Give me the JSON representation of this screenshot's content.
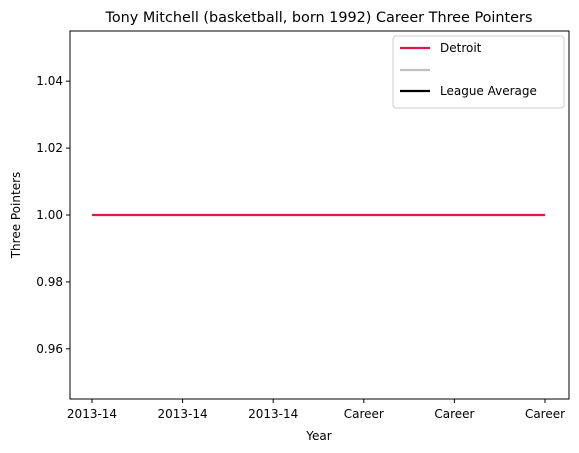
{
  "chart_data": {
    "type": "line",
    "title": "Tony Mitchell (basketball, born 1992) Career Three Pointers",
    "xlabel": "Year",
    "ylabel": "Three Pointers",
    "categories": [
      "2013-14",
      "2013-14",
      "2013-14",
      "Career",
      "Career",
      "Career"
    ],
    "ylim": [
      0.945,
      1.055
    ],
    "yticks": [
      0.96,
      0.98,
      1.0,
      1.02,
      1.04
    ],
    "ytick_labels": [
      "0.96",
      "0.98",
      "1.00",
      "1.02",
      "1.04"
    ],
    "grid": false,
    "legend_position": "top-right",
    "series": [
      {
        "name": "Detroit",
        "color": "#e0174a",
        "values": [
          1,
          1,
          1,
          1,
          1,
          1
        ]
      }
    ],
    "legend": [
      {
        "label": "Detroit",
        "color": "#e0174a"
      },
      {
        "label": "",
        "color": "#c0c0c0"
      },
      {
        "label": "League Average",
        "color": "#000000"
      }
    ]
  }
}
